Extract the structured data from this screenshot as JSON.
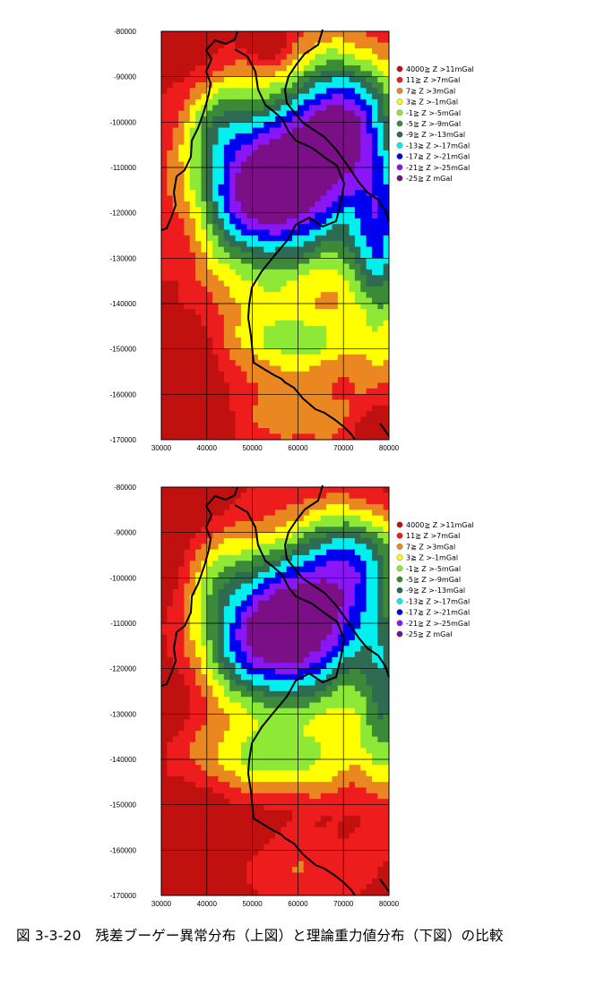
{
  "caption": "図 3-3-20　残差ブーゲー異常分布（上図）と理論重力値分布（下図）の比較",
  "legend": [
    {
      "label": "4000≧ Z >11mGal",
      "color": "#c0100f"
    },
    {
      "label": "11≧ Z >7mGal",
      "color": "#ee1d1d"
    },
    {
      "label": "7≧ Z >3mGal",
      "color": "#ea8720"
    },
    {
      "label": "3≧ Z >-1mGal",
      "color": "#ffff00"
    },
    {
      "label": "-1≧ Z >-5mGal",
      "color": "#8ee836"
    },
    {
      "label": "-5≧ Z >-9mGal",
      "color": "#3a8a3a"
    },
    {
      "label": "-9≧ Z >-13mGal",
      "color": "#2e6b52"
    },
    {
      "label": "-13≧ Z >-17mGal",
      "color": "#00f0f0"
    },
    {
      "label": "-17≧ Z >-21mGal",
      "color": "#0000f0"
    },
    {
      "label": "-21≧ Z >-25mGal",
      "color": "#8a16f5"
    },
    {
      "label": "-25≧ Z mGal",
      "color": "#7a0f86"
    }
  ],
  "x_ticks": [
    "30000",
    "40000",
    "50000",
    "60000",
    "70000",
    "80000"
  ],
  "y_ticks": [
    "-80000",
    "-90000",
    "-100000",
    "-110000",
    "-120000",
    "-130000",
    "-140000",
    "-150000",
    "-160000",
    "-170000"
  ],
  "maps": [
    {
      "name": "residual-bouguer-anomaly-map"
    },
    {
      "name": "theoretical-gravity-map"
    }
  ]
}
